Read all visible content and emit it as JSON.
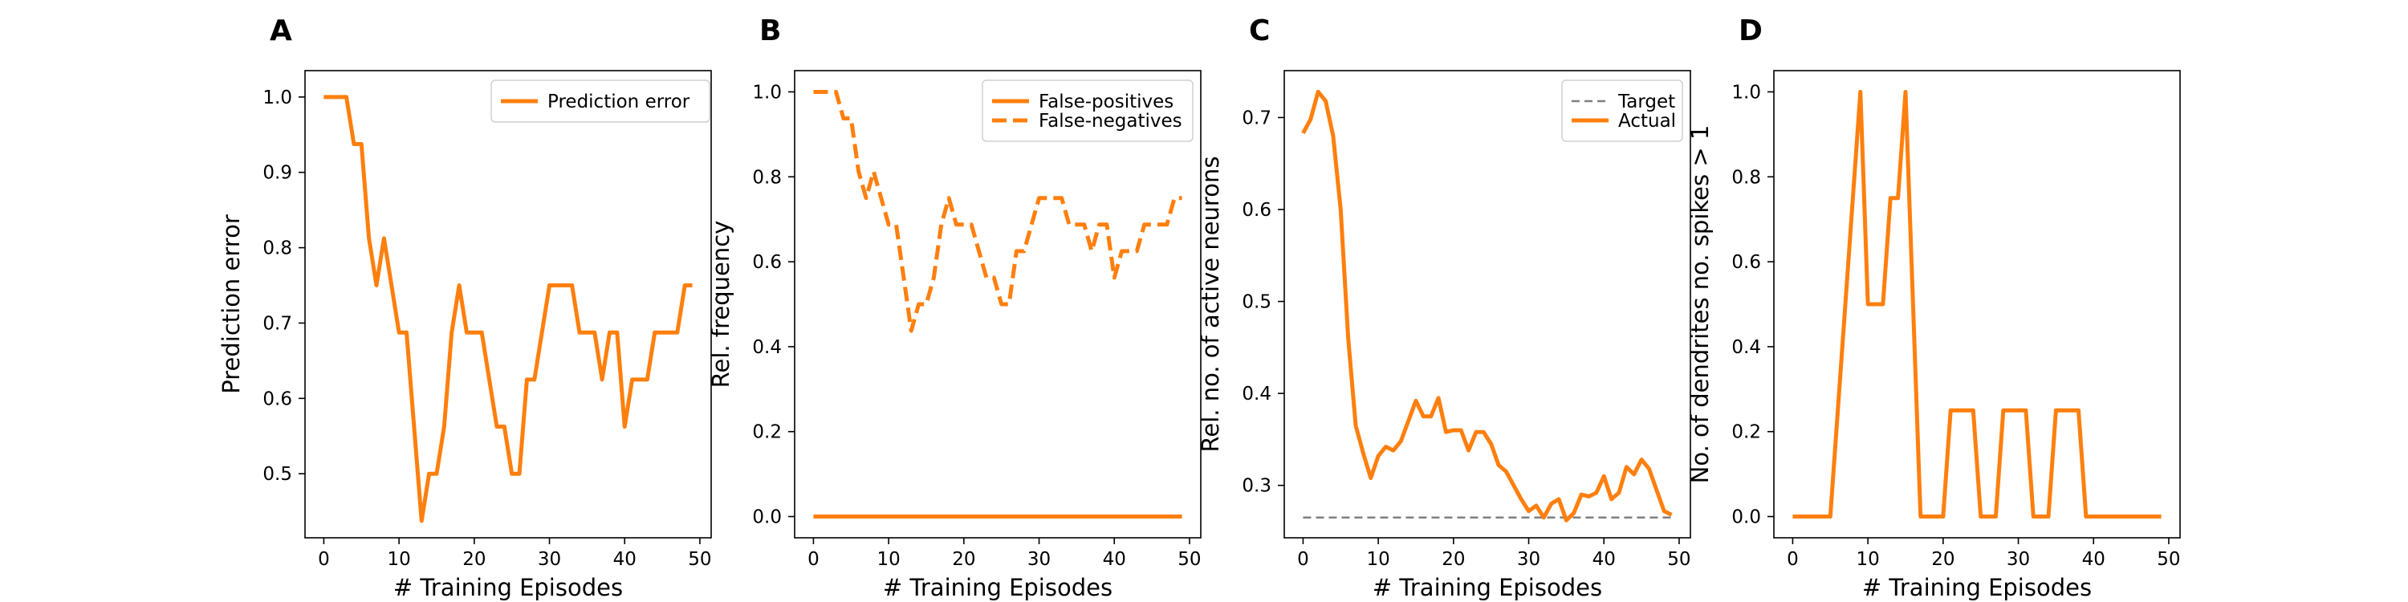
{
  "chart_data": [
    {
      "panel": "A",
      "type": "line",
      "xlabel": "# Training Episodes",
      "ylabel": "Prediction error",
      "xlim": [
        -2.5,
        51.5
      ],
      "ylim": [
        0.415,
        1.035
      ],
      "xticks": [
        0,
        10,
        20,
        30,
        40,
        50
      ],
      "yticks": [
        0.5,
        0.6,
        0.7,
        0.8,
        0.9,
        1.0
      ],
      "ytick_labels": [
        "0.5",
        "0.6",
        "0.7",
        "0.8",
        "0.9",
        "1.0"
      ],
      "grid": false,
      "legend_position": "top-right",
      "series": [
        {
          "name": "Prediction error",
          "style": "solid",
          "color": "#ff7f0e",
          "x": [
            0,
            1,
            2,
            3,
            4,
            5,
            6,
            7,
            8,
            9,
            10,
            11,
            12,
            13,
            14,
            15,
            16,
            17,
            18,
            19,
            20,
            21,
            22,
            23,
            24,
            25,
            26,
            27,
            28,
            29,
            30,
            31,
            32,
            33,
            34,
            35,
            36,
            37,
            38,
            39,
            40,
            41,
            42,
            43,
            44,
            45,
            46,
            47,
            48,
            49
          ],
          "y": [
            1.0,
            1.0,
            1.0,
            1.0,
            0.9375,
            0.9375,
            0.8125,
            0.75,
            0.8125,
            0.75,
            0.6875,
            0.6875,
            0.5625,
            0.4375,
            0.5,
            0.5,
            0.5625,
            0.6875,
            0.75,
            0.6875,
            0.6875,
            0.6875,
            0.625,
            0.5625,
            0.5625,
            0.5,
            0.5,
            0.625,
            0.625,
            0.6875,
            0.75,
            0.75,
            0.75,
            0.75,
            0.6875,
            0.6875,
            0.6875,
            0.625,
            0.6875,
            0.6875,
            0.5625,
            0.625,
            0.625,
            0.625,
            0.6875,
            0.6875,
            0.6875,
            0.6875,
            0.75,
            0.75
          ]
        }
      ]
    },
    {
      "panel": "B",
      "type": "line",
      "xlabel": "# Training Episodes",
      "ylabel": "Rel. frequency",
      "xlim": [
        -2.5,
        51.5
      ],
      "ylim": [
        -0.05,
        1.05
      ],
      "xticks": [
        0,
        10,
        20,
        30,
        40,
        50
      ],
      "yticks": [
        0.0,
        0.2,
        0.4,
        0.6,
        0.8,
        1.0
      ],
      "ytick_labels": [
        "0.0",
        "0.2",
        "0.4",
        "0.6",
        "0.8",
        "1.0"
      ],
      "grid": false,
      "legend_position": "top-right",
      "series": [
        {
          "name": "False-positives",
          "style": "solid",
          "color": "#ff7f0e",
          "x": [
            0,
            1,
            2,
            3,
            4,
            5,
            6,
            7,
            8,
            9,
            10,
            11,
            12,
            13,
            14,
            15,
            16,
            17,
            18,
            19,
            20,
            21,
            22,
            23,
            24,
            25,
            26,
            27,
            28,
            29,
            30,
            31,
            32,
            33,
            34,
            35,
            36,
            37,
            38,
            39,
            40,
            41,
            42,
            43,
            44,
            45,
            46,
            47,
            48,
            49
          ],
          "y": [
            0,
            0,
            0,
            0,
            0,
            0,
            0,
            0,
            0,
            0,
            0,
            0,
            0,
            0,
            0,
            0,
            0,
            0,
            0,
            0,
            0,
            0,
            0,
            0,
            0,
            0,
            0,
            0,
            0,
            0,
            0,
            0,
            0,
            0,
            0,
            0,
            0,
            0,
            0,
            0,
            0,
            0,
            0,
            0,
            0,
            0,
            0,
            0,
            0,
            0
          ]
        },
        {
          "name": "False-negatives",
          "style": "dashed",
          "color": "#ff7f0e",
          "x": [
            0,
            1,
            2,
            3,
            4,
            5,
            6,
            7,
            8,
            9,
            10,
            11,
            12,
            13,
            14,
            15,
            16,
            17,
            18,
            19,
            20,
            21,
            22,
            23,
            24,
            25,
            26,
            27,
            28,
            29,
            30,
            31,
            32,
            33,
            34,
            35,
            36,
            37,
            38,
            39,
            40,
            41,
            42,
            43,
            44,
            45,
            46,
            47,
            48,
            49
          ],
          "y": [
            1.0,
            1.0,
            1.0,
            1.0,
            0.9375,
            0.9375,
            0.8125,
            0.75,
            0.8125,
            0.75,
            0.6875,
            0.6875,
            0.5625,
            0.4375,
            0.5,
            0.5,
            0.5625,
            0.6875,
            0.75,
            0.6875,
            0.6875,
            0.6875,
            0.625,
            0.5625,
            0.5625,
            0.5,
            0.5,
            0.625,
            0.625,
            0.6875,
            0.75,
            0.75,
            0.75,
            0.75,
            0.6875,
            0.6875,
            0.6875,
            0.625,
            0.6875,
            0.6875,
            0.5625,
            0.625,
            0.625,
            0.625,
            0.6875,
            0.6875,
            0.6875,
            0.6875,
            0.75,
            0.75
          ]
        }
      ]
    },
    {
      "panel": "C",
      "type": "line",
      "xlabel": "# Training Episodes",
      "ylabel": "Rel. no. of active neurons",
      "xlim": [
        -2.5,
        51.5
      ],
      "ylim": [
        0.243,
        0.751
      ],
      "xticks": [
        0,
        10,
        20,
        30,
        40,
        50
      ],
      "yticks": [
        0.3,
        0.4,
        0.5,
        0.6,
        0.7
      ],
      "ytick_labels": [
        "0.3",
        "0.4",
        "0.5",
        "0.6",
        "0.7"
      ],
      "grid": false,
      "legend_position": "top-right",
      "series": [
        {
          "name": "Target",
          "style": "dashed",
          "color": "#808080",
          "x": [
            0,
            49
          ],
          "y": [
            0.265,
            0.265
          ]
        },
        {
          "name": "Actual",
          "style": "solid",
          "color": "#ff7f0e",
          "x": [
            0,
            1,
            2,
            3,
            4,
            5,
            6,
            7,
            8,
            9,
            10,
            11,
            12,
            13,
            14,
            15,
            16,
            17,
            18,
            19,
            20,
            21,
            22,
            23,
            24,
            25,
            26,
            27,
            28,
            29,
            30,
            31,
            32,
            33,
            34,
            35,
            36,
            37,
            38,
            39,
            40,
            41,
            42,
            43,
            44,
            45,
            46,
            47,
            48,
            49
          ],
          "y": [
            0.683,
            0.698,
            0.728,
            0.718,
            0.68,
            0.6,
            0.46,
            0.365,
            0.335,
            0.308,
            0.332,
            0.342,
            0.338,
            0.348,
            0.37,
            0.392,
            0.375,
            0.375,
            0.395,
            0.358,
            0.36,
            0.36,
            0.338,
            0.358,
            0.358,
            0.345,
            0.322,
            0.315,
            0.3,
            0.285,
            0.272,
            0.278,
            0.265,
            0.28,
            0.285,
            0.262,
            0.27,
            0.29,
            0.288,
            0.292,
            0.31,
            0.285,
            0.292,
            0.32,
            0.312,
            0.328,
            0.318,
            0.295,
            0.272,
            0.268
          ]
        }
      ]
    },
    {
      "panel": "D",
      "type": "line",
      "xlabel": "# Training Episodes",
      "ylabel": "No. of dendrites no. spikes > 1",
      "xlim": [
        -2.5,
        51.5
      ],
      "ylim": [
        -0.05,
        1.05
      ],
      "xticks": [
        0,
        10,
        20,
        30,
        40,
        50
      ],
      "yticks": [
        0.0,
        0.2,
        0.4,
        0.6,
        0.8,
        1.0
      ],
      "ytick_labels": [
        "0.0",
        "0.2",
        "0.4",
        "0.6",
        "0.8",
        "1.0"
      ],
      "grid": false,
      "legend_position": "",
      "series": [
        {
          "style": "solid",
          "color": "#ff7f0e",
          "x": [
            0,
            1,
            2,
            3,
            4,
            5,
            6,
            7,
            8,
            9,
            10,
            11,
            12,
            13,
            14,
            15,
            16,
            17,
            18,
            19,
            20,
            21,
            22,
            23,
            24,
            25,
            26,
            27,
            28,
            29,
            30,
            31,
            32,
            33,
            34,
            35,
            36,
            37,
            38,
            39,
            40,
            41,
            42,
            43,
            44,
            45,
            46,
            47,
            48,
            49
          ],
          "y": [
            0,
            0,
            0,
            0,
            0,
            0,
            0.25,
            0.5,
            0.75,
            1.0,
            0.5,
            0.5,
            0.5,
            0.75,
            0.75,
            1.0,
            0.5,
            0,
            0,
            0,
            0,
            0.25,
            0.25,
            0.25,
            0.25,
            0,
            0,
            0,
            0.25,
            0.25,
            0.25,
            0.25,
            0,
            0,
            0,
            0.25,
            0.25,
            0.25,
            0.25,
            0,
            0,
            0,
            0,
            0,
            0,
            0,
            0,
            0,
            0,
            0
          ]
        }
      ]
    }
  ]
}
